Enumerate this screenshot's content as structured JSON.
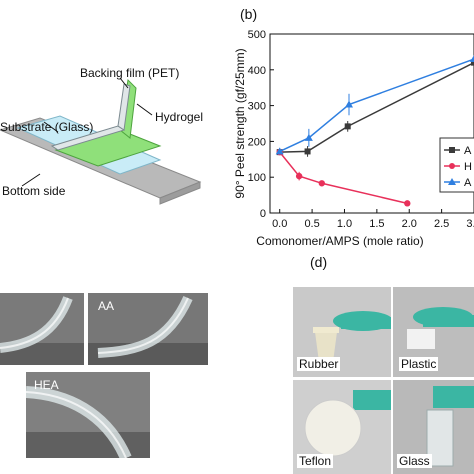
{
  "panels": {
    "b_label": "(b)",
    "d_label": "(d)"
  },
  "schematic": {
    "backing_film": "Backing film (PET)",
    "hydrogel": "Hydrogel",
    "substrate": "Substrate (Glass)",
    "bottom": "Bottom side",
    "colors": {
      "glass": "#bfe6f3",
      "hydrogel": "#8ee07a",
      "pet": "#cfd8dc",
      "base": "#b0b0b0"
    }
  },
  "photos_c": {
    "aa": "AA",
    "hea": "HEA"
  },
  "photos_d": {
    "rubber": "Rubber",
    "plastic": "Plastic",
    "teflon": "Teflon",
    "glass": "Glass"
  },
  "chart_data": {
    "type": "line",
    "xlabel": "Comonomer/AMPS (mole ratio)",
    "ylabel": "90° Peel strength (gf/25mm)",
    "xlim": [
      -0.15,
      3.0
    ],
    "ylim": [
      0,
      500
    ],
    "xticks": [
      "0.0",
      "0.5",
      "1.0",
      "1.5",
      "2.0",
      "2.5",
      "3.0"
    ],
    "xtick_values": [
      0.0,
      0.5,
      1.0,
      1.5,
      2.0,
      2.5,
      3.0
    ],
    "yticks": [
      "0",
      "100",
      "200",
      "300",
      "400",
      "500"
    ],
    "ytick_values": [
      0,
      100,
      200,
      300,
      400,
      500
    ],
    "series": [
      {
        "name": "A",
        "color": "#3a3a3a",
        "marker": "square",
        "x": [
          0.0,
          0.43,
          1.05,
          3.0
        ],
        "y": [
          170,
          172,
          242,
          420
        ],
        "err": [
          8,
          15,
          15,
          0
        ]
      },
      {
        "name": "H",
        "color": "#e8305a",
        "marker": "circle",
        "x": [
          0.0,
          0.3,
          0.65,
          1.97
        ],
        "y": [
          170,
          103,
          83,
          27
        ],
        "err": [
          6,
          12,
          6,
          3
        ]
      },
      {
        "name": "A",
        "color": "#2f7fe0",
        "marker": "triangle",
        "x": [
          0.0,
          0.45,
          1.07,
          3.0
        ],
        "y": [
          172,
          210,
          303,
          430
        ],
        "err": [
          8,
          25,
          30,
          0
        ]
      }
    ]
  }
}
